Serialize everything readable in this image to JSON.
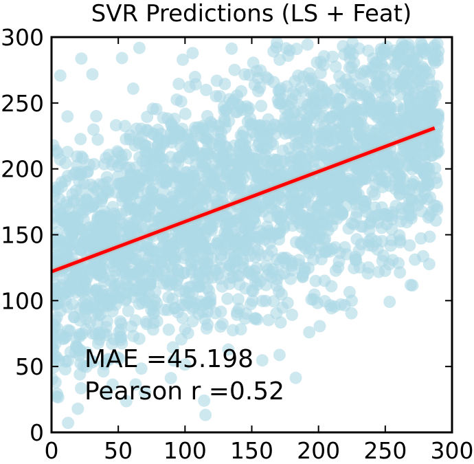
{
  "chart_data": {
    "type": "scatter",
    "title": "SVR Predictions (LS + Feat)",
    "xlabel": "",
    "ylabel": "",
    "xlim": [
      0,
      300
    ],
    "ylim": [
      0,
      300
    ],
    "x_ticks": [
      "0",
      "50",
      "100",
      "150",
      "200",
      "250",
      "300"
    ],
    "y_ticks": [
      "0",
      "50",
      "100",
      "150",
      "200",
      "250",
      "300"
    ],
    "grid": false,
    "point_color": "#add8e6",
    "point_alpha": 0.6,
    "fit_line": {
      "color": "#ff0000",
      "x": [
        0,
        287
      ],
      "y": [
        122,
        231
      ]
    },
    "annotations": {
      "mae": "MAE =45.198",
      "pearson": "Pearson r =0.52"
    },
    "point_cloud": {
      "x_range": [
        0,
        290
      ],
      "n_points": 2600,
      "slope": 0.38,
      "intercept": 122,
      "spread": 45
    }
  }
}
